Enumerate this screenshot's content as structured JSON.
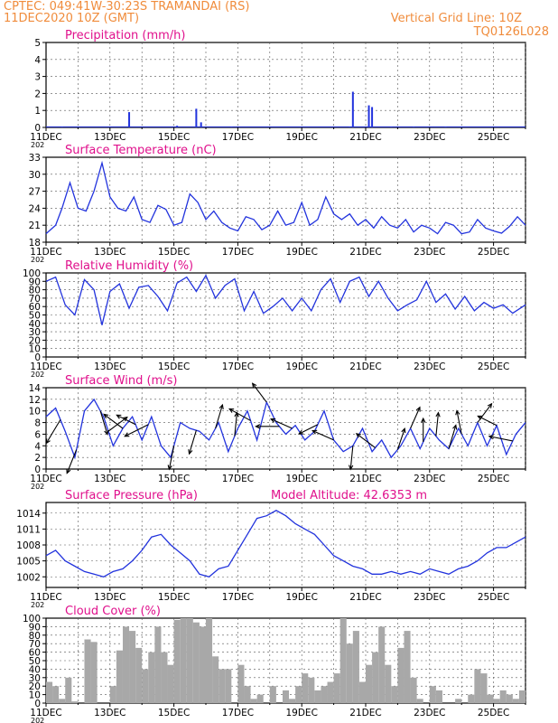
{
  "header": {
    "line1_left": "CPTEC:  049:41W-30:23S  TRAMANDAI (RS)",
    "line2_left": "11DEC2020 10Z (GMT)",
    "line1_right": "Vertical Grid Line: 10Z",
    "line2_right": "TQ0126L028"
  },
  "x_axis": {
    "tick_labels": [
      "11DEC",
      "13DEC",
      "15DEC",
      "17DEC",
      "19DEC",
      "21DEC",
      "23DEC",
      "25DEC"
    ],
    "year_fragment": "202",
    "range_days": [
      0,
      15
    ]
  },
  "colors": {
    "series": "#2233dd",
    "title": "#e0108c",
    "header": "#f08c3c",
    "cloud": "#a8a8a8",
    "wind_arrow": "#000000"
  },
  "chart_data": [
    {
      "id": "precip",
      "type": "bar",
      "title": "Precipitation (mm/h)",
      "ylim": [
        0,
        5
      ],
      "yticks": [
        0,
        1,
        2,
        3,
        4,
        5
      ],
      "grid": "dashed",
      "x_days": [
        0.5,
        1.0,
        2.0,
        2.6,
        4.1,
        4.7,
        4.85,
        5.8,
        9.5,
        9.6,
        10.1,
        10.2,
        10.8,
        11.5,
        12.5,
        13.0
      ],
      "values": [
        0.05,
        0.05,
        0.05,
        0.9,
        0.1,
        1.1,
        0.3,
        0.05,
        0.05,
        2.1,
        1.3,
        1.2,
        0.05,
        0.05,
        0.05,
        0.05
      ]
    },
    {
      "id": "temp",
      "type": "line",
      "title": "Surface Temperature (nC)",
      "ylim": [
        18,
        33
      ],
      "yticks": [
        18,
        21,
        24,
        27,
        30,
        33
      ],
      "grid": "dashed",
      "x_days": [
        0,
        0.3,
        0.5,
        0.75,
        1.0,
        1.25,
        1.5,
        1.75,
        2.0,
        2.25,
        2.5,
        2.75,
        3.0,
        3.25,
        3.5,
        3.75,
        4.0,
        4.25,
        4.5,
        4.75,
        5.0,
        5.25,
        5.5,
        5.75,
        6.0,
        6.25,
        6.5,
        6.75,
        7.0,
        7.25,
        7.5,
        7.75,
        8.0,
        8.25,
        8.5,
        8.75,
        9.0,
        9.25,
        9.5,
        9.75,
        10.0,
        10.25,
        10.5,
        10.75,
        11.0,
        11.25,
        11.5,
        11.75,
        12.0,
        12.25,
        12.5,
        12.75,
        13.0,
        13.25,
        13.5,
        13.75,
        14.0,
        14.25,
        14.5,
        14.75,
        15.0
      ],
      "values": [
        19.5,
        21,
        24,
        28.5,
        24,
        23.5,
        27,
        32,
        26,
        24,
        23.5,
        26,
        22,
        21.5,
        24.5,
        23.8,
        21,
        21.5,
        26.5,
        25,
        22,
        23.5,
        21.5,
        20.5,
        20,
        22.5,
        22,
        20.2,
        21,
        23.5,
        21,
        21.5,
        25,
        21,
        22,
        26,
        23,
        22,
        23,
        21,
        22,
        20.5,
        22.5,
        21,
        20.5,
        22,
        19.8,
        21,
        20.5,
        19.5,
        21.5,
        21,
        19.5,
        19.8,
        22,
        20.5,
        20,
        19.6,
        20.8,
        22.5,
        21
      ]
    },
    {
      "id": "rh",
      "type": "line",
      "title": "Relative Humidity (%)",
      "ylim": [
        0,
        100
      ],
      "yticks": [
        0,
        10,
        20,
        30,
        40,
        50,
        60,
        70,
        80,
        90,
        100
      ],
      "grid": "dashed",
      "x_days": [
        0,
        0.3,
        0.6,
        0.9,
        1.2,
        1.5,
        1.75,
        2.0,
        2.3,
        2.6,
        2.9,
        3.2,
        3.5,
        3.8,
        4.1,
        4.4,
        4.7,
        5.0,
        5.3,
        5.6,
        5.9,
        6.2,
        6.5,
        6.8,
        7.1,
        7.4,
        7.7,
        8.0,
        8.3,
        8.6,
        8.9,
        9.2,
        9.5,
        9.8,
        10.1,
        10.4,
        10.7,
        11.0,
        11.3,
        11.6,
        11.9,
        12.2,
        12.5,
        12.8,
        13.1,
        13.4,
        13.7,
        14.0,
        14.3,
        14.6,
        15.0
      ],
      "values": [
        90,
        95,
        62,
        50,
        92,
        80,
        38,
        78,
        87,
        58,
        83,
        85,
        72,
        55,
        88,
        95,
        78,
        97,
        70,
        85,
        93,
        55,
        78,
        52,
        60,
        70,
        55,
        70,
        55,
        80,
        93,
        65,
        90,
        95,
        72,
        90,
        70,
        55,
        62,
        68,
        90,
        65,
        75,
        57,
        72,
        55,
        65,
        58,
        62,
        52,
        62
      ]
    },
    {
      "id": "wind",
      "type": "line",
      "title": "Surface Wind (m/s)",
      "ylim": [
        0,
        14
      ],
      "yticks": [
        0,
        2,
        4,
        6,
        8,
        10,
        12,
        14
      ],
      "grid": "dashed",
      "x_days": [
        0,
        0.3,
        0.6,
        0.9,
        1.2,
        1.5,
        1.8,
        2.1,
        2.4,
        2.7,
        3.0,
        3.3,
        3.6,
        3.9,
        4.2,
        4.5,
        4.8,
        5.1,
        5.4,
        5.7,
        6.0,
        6.3,
        6.6,
        6.9,
        7.2,
        7.5,
        7.8,
        8.1,
        8.4,
        8.7,
        9.0,
        9.3,
        9.6,
        9.9,
        10.2,
        10.5,
        10.8,
        11.1,
        11.4,
        11.7,
        12.0,
        12.3,
        12.6,
        12.9,
        13.2,
        13.5,
        13.8,
        14.1,
        14.4,
        14.7,
        15.0
      ],
      "values": [
        9,
        10.5,
        6.5,
        2,
        10,
        12,
        9,
        4,
        7,
        9,
        5,
        9,
        4,
        2,
        8,
        7,
        6.5,
        5,
        8,
        3,
        7,
        10,
        5,
        11.5,
        8,
        6,
        7.5,
        5,
        6.5,
        10,
        5,
        3,
        4,
        7,
        3,
        5,
        2,
        4,
        7,
        3.5,
        7,
        5,
        3.5,
        7,
        4,
        8,
        4,
        7.5,
        2.5,
        6,
        8
      ]
    },
    {
      "id": "pressure",
      "type": "line",
      "title": "Surface Pressure (hPa)",
      "annotation": "Model Altitude: 42.6353 m",
      "ylim": [
        1000,
        1016
      ],
      "yticks": [
        1002,
        1005,
        1008,
        1011,
        1014
      ],
      "grid": "dashed",
      "x_days": [
        0,
        0.3,
        0.6,
        0.9,
        1.2,
        1.5,
        1.8,
        2.1,
        2.4,
        2.7,
        3.0,
        3.3,
        3.6,
        3.9,
        4.2,
        4.5,
        4.8,
        5.1,
        5.4,
        5.7,
        6.0,
        6.3,
        6.6,
        6.9,
        7.2,
        7.5,
        7.8,
        8.1,
        8.4,
        8.7,
        9.0,
        9.3,
        9.6,
        9.9,
        10.2,
        10.5,
        10.8,
        11.1,
        11.4,
        11.7,
        12.0,
        12.3,
        12.6,
        12.9,
        13.2,
        13.5,
        13.8,
        14.1,
        14.4,
        14.7,
        15.0
      ],
      "values": [
        1006,
        1007,
        1005,
        1004,
        1003,
        1002.5,
        1002,
        1003,
        1003.5,
        1005,
        1007,
        1009.5,
        1010,
        1008,
        1006.5,
        1005,
        1002.5,
        1002,
        1003.5,
        1004,
        1007,
        1010,
        1013,
        1013.5,
        1014.5,
        1013.5,
        1012,
        1011,
        1010,
        1008,
        1006,
        1005,
        1004,
        1003.5,
        1002.5,
        1002.5,
        1003,
        1002.5,
        1003,
        1002.5,
        1003.5,
        1003,
        1002.5,
        1003.5,
        1004,
        1005,
        1006.5,
        1007.5,
        1007.5,
        1008.5,
        1009.5
      ]
    },
    {
      "id": "cloud",
      "type": "area",
      "title": "Cloud Cover (%)",
      "ylim": [
        0,
        100
      ],
      "yticks": [
        0,
        10,
        20,
        30,
        40,
        50,
        60,
        70,
        80,
        90,
        100
      ],
      "grid": "dashed",
      "x_days": [
        0,
        0.2,
        0.4,
        0.6,
        0.8,
        1.0,
        1.2,
        1.4,
        1.6,
        1.8,
        2.0,
        2.2,
        2.4,
        2.6,
        2.8,
        3.0,
        3.2,
        3.4,
        3.6,
        3.8,
        4.0,
        4.2,
        4.4,
        4.6,
        4.8,
        5.0,
        5.2,
        5.4,
        5.6,
        5.8,
        6.0,
        6.2,
        6.4,
        6.6,
        6.8,
        7.0,
        7.2,
        7.4,
        7.6,
        7.8,
        8.0,
        8.2,
        8.4,
        8.6,
        8.8,
        9.0,
        9.2,
        9.4,
        9.6,
        9.8,
        10.0,
        10.2,
        10.4,
        10.6,
        10.8,
        11.0,
        11.2,
        11.4,
        11.6,
        11.8,
        12.0,
        12.2,
        12.4,
        12.6,
        12.8,
        13.0,
        13.2,
        13.4,
        13.6,
        13.8,
        14.0,
        14.2,
        14.4,
        14.6,
        14.8,
        15.0
      ],
      "values": [
        25,
        20,
        5,
        30,
        2,
        0,
        75,
        72,
        0,
        0,
        20,
        62,
        90,
        85,
        65,
        40,
        60,
        90,
        60,
        45,
        98,
        100,
        100,
        95,
        90,
        100,
        55,
        40,
        40,
        0,
        45,
        20,
        5,
        10,
        0,
        20,
        0,
        15,
        5,
        20,
        35,
        30,
        15,
        20,
        25,
        35,
        100,
        70,
        85,
        25,
        45,
        60,
        90,
        45,
        20,
        65,
        85,
        30,
        5,
        0,
        20,
        15,
        0,
        0,
        5,
        0,
        10,
        40,
        35,
        10,
        5,
        15,
        10,
        5,
        15,
        0
      ]
    }
  ],
  "wind_arrows": [
    {
      "x_day": 0.45,
      "u": -0.6,
      "v": -1.0
    },
    {
      "x_day": 0.95,
      "u": -0.4,
      "v": -1.0
    },
    {
      "x_day": 1.7,
      "u": 0.3,
      "v": -1.0
    },
    {
      "x_day": 1.95,
      "u": 0.8,
      "v": 0.6
    },
    {
      "x_day": 2.4,
      "u": -0.8,
      "v": 0.6
    },
    {
      "x_day": 2.8,
      "u": -0.8,
      "v": 0.4
    },
    {
      "x_day": 3.2,
      "u": -1.0,
      "v": -0.5
    },
    {
      "x_day": 4.0,
      "u": -0.2,
      "v": -1.0
    },
    {
      "x_day": 4.7,
      "u": -0.3,
      "v": -1.0
    },
    {
      "x_day": 5.3,
      "u": 0.3,
      "v": 1.0
    },
    {
      "x_day": 5.9,
      "u": 0.1,
      "v": 1.0
    },
    {
      "x_day": 6.4,
      "u": -0.9,
      "v": 0.5
    },
    {
      "x_day": 6.9,
      "u": -0.6,
      "v": 0.8
    },
    {
      "x_day": 7.3,
      "u": -1.0,
      "v": 0.0
    },
    {
      "x_day": 7.7,
      "u": -0.9,
      "v": 0.4
    },
    {
      "x_day": 8.5,
      "u": -0.8,
      "v": -0.4
    },
    {
      "x_day": 9.0,
      "u": -0.9,
      "v": 0.4
    },
    {
      "x_day": 9.6,
      "u": -0.1,
      "v": -1.0
    },
    {
      "x_day": 10.3,
      "u": -0.8,
      "v": 0.6
    },
    {
      "x_day": 11.0,
      "u": 0.3,
      "v": 0.9
    },
    {
      "x_day": 11.4,
      "u": 0.4,
      "v": 0.9
    },
    {
      "x_day": 11.8,
      "u": 0.0,
      "v": 1.0
    },
    {
      "x_day": 12.2,
      "u": 0.1,
      "v": 1.0
    },
    {
      "x_day": 12.6,
      "u": 0.3,
      "v": 1.0
    },
    {
      "x_day": 13.0,
      "u": -0.2,
      "v": 1.0
    },
    {
      "x_day": 13.5,
      "u": 0.6,
      "v": 0.8
    },
    {
      "x_day": 14.1,
      "u": -0.8,
      "v": 0.4
    },
    {
      "x_day": 14.6,
      "u": -1.0,
      "v": 0.2
    }
  ]
}
